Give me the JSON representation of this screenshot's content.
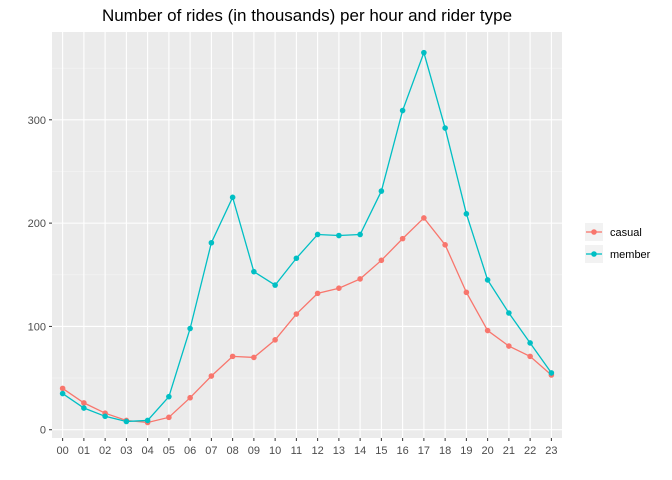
{
  "chart_data": {
    "type": "line",
    "title": "Number of rides (in thousands) per hour and rider type",
    "xlabel": "",
    "ylabel": "",
    "x": [
      "00",
      "01",
      "02",
      "03",
      "04",
      "05",
      "06",
      "07",
      "08",
      "09",
      "10",
      "11",
      "12",
      "13",
      "14",
      "15",
      "16",
      "17",
      "18",
      "19",
      "20",
      "21",
      "22",
      "23"
    ],
    "yticks": [
      0,
      100,
      200,
      300
    ],
    "ylim": [
      -8,
      385
    ],
    "grid": true,
    "legend_position": "right",
    "series": [
      {
        "name": "casual",
        "color": "#F8766D",
        "values": [
          40,
          26,
          16,
          9,
          7,
          12,
          31,
          52,
          71,
          70,
          87,
          112,
          132,
          137,
          146,
          164,
          185,
          205,
          179,
          133,
          96,
          81,
          71,
          53
        ]
      },
      {
        "name": "member",
        "color": "#00BFC4",
        "values": [
          35,
          21,
          13,
          8,
          9,
          32,
          98,
          181,
          225,
          153,
          140,
          166,
          189,
          188,
          189,
          231,
          309,
          365,
          292,
          209,
          145,
          113,
          84,
          55
        ]
      }
    ]
  }
}
